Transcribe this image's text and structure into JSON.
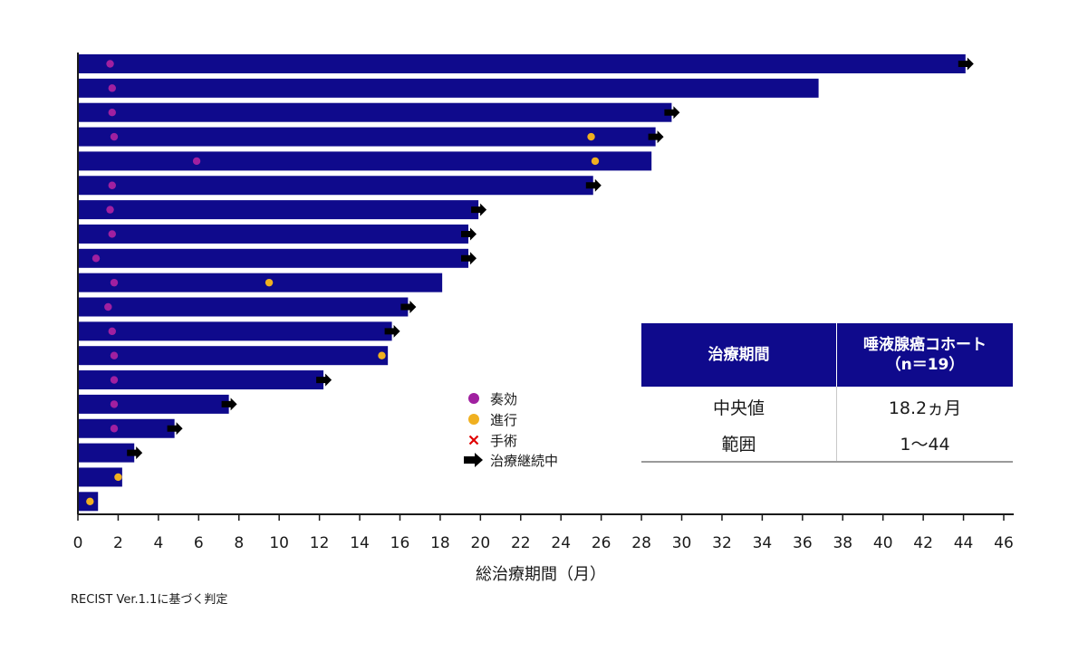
{
  "colors": {
    "bar": "#0f0a8c",
    "response": "#a020a0",
    "progression": "#f0b020",
    "surgery": "#e00000",
    "ongoing": "#000000"
  },
  "chart_data": {
    "type": "bar",
    "orientation": "horizontal",
    "title": "",
    "xlabel": "総治療期間（月）",
    "ylabel": "",
    "xlim": [
      0,
      46
    ],
    "xticks": [
      0,
      2,
      4,
      6,
      8,
      10,
      12,
      14,
      16,
      18,
      20,
      22,
      24,
      26,
      28,
      30,
      32,
      34,
      36,
      38,
      40,
      42,
      44,
      46
    ],
    "legend": {
      "placement": "center",
      "items": [
        {
          "marker": "circle-purple",
          "label": "奏効"
        },
        {
          "marker": "circle-orange",
          "label": "進行"
        },
        {
          "marker": "x-red",
          "label": "手術"
        },
        {
          "marker": "arrow-black",
          "label": "治療継続中"
        }
      ]
    },
    "patients": [
      {
        "duration": 44.1,
        "response": 1.6,
        "progression": null,
        "ongoing": true
      },
      {
        "duration": 36.8,
        "response": 1.7,
        "progression": null,
        "ongoing": false
      },
      {
        "duration": 29.5,
        "response": 1.7,
        "progression": null,
        "ongoing": true
      },
      {
        "duration": 28.7,
        "response": 1.8,
        "progression": 25.5,
        "ongoing": true
      },
      {
        "duration": 28.5,
        "response": 5.9,
        "progression": 25.7,
        "ongoing": false
      },
      {
        "duration": 25.6,
        "response": 1.7,
        "progression": null,
        "ongoing": true
      },
      {
        "duration": 19.9,
        "response": 1.6,
        "progression": null,
        "ongoing": true
      },
      {
        "duration": 19.4,
        "response": 1.7,
        "progression": null,
        "ongoing": true
      },
      {
        "duration": 19.4,
        "response": 0.9,
        "progression": null,
        "ongoing": true
      },
      {
        "duration": 18.1,
        "response": 1.8,
        "progression": 9.5,
        "ongoing": false
      },
      {
        "duration": 16.4,
        "response": 1.5,
        "progression": null,
        "ongoing": true
      },
      {
        "duration": 15.6,
        "response": 1.7,
        "progression": null,
        "ongoing": true
      },
      {
        "duration": 15.4,
        "response": 1.8,
        "progression": 15.1,
        "ongoing": false
      },
      {
        "duration": 12.2,
        "response": 1.8,
        "progression": null,
        "ongoing": true
      },
      {
        "duration": 7.5,
        "response": 1.8,
        "progression": null,
        "ongoing": true
      },
      {
        "duration": 4.8,
        "response": 1.8,
        "progression": null,
        "ongoing": true
      },
      {
        "duration": 2.8,
        "response": null,
        "progression": null,
        "ongoing": true
      },
      {
        "duration": 2.2,
        "response": null,
        "progression": 2.0,
        "ongoing": false
      },
      {
        "duration": 1.0,
        "response": null,
        "progression": 0.6,
        "ongoing": false
      }
    ]
  },
  "summary_table": {
    "header": {
      "col1": "治療期間",
      "col2_line1": "唾液腺癌コホート",
      "col2_line2": "（n＝19）"
    },
    "rows": [
      {
        "label": "中央値",
        "value": "18.2ヵ月"
      },
      {
        "label": "範囲",
        "value": "1～44"
      }
    ]
  },
  "footnote": "RECIST Ver.1.1に基づく判定"
}
